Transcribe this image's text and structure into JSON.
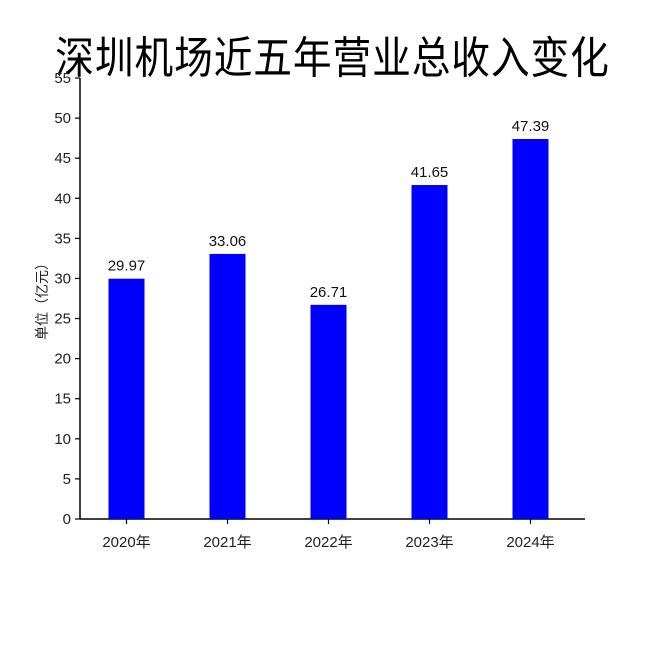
{
  "title": "深圳机场近五年营业总收入变化",
  "chart_data": {
    "type": "bar",
    "title": "深圳机场近五年营业总收入变化",
    "categories": [
      "2020年",
      "2021年",
      "2022年",
      "2023年",
      "2024年"
    ],
    "values": [
      29.97,
      33.06,
      26.71,
      41.65,
      47.39
    ],
    "value_labels": [
      "29.97",
      "33.06",
      "26.71",
      "41.65",
      "47.39"
    ],
    "xlabel": "",
    "ylabel": "单位（亿元）",
    "ylim": [
      0,
      55
    ],
    "yticks": [
      0,
      5,
      10,
      15,
      20,
      25,
      30,
      35,
      40,
      45,
      50,
      55
    ],
    "grid": false,
    "legend": null,
    "bar_color": "#0000ff"
  }
}
